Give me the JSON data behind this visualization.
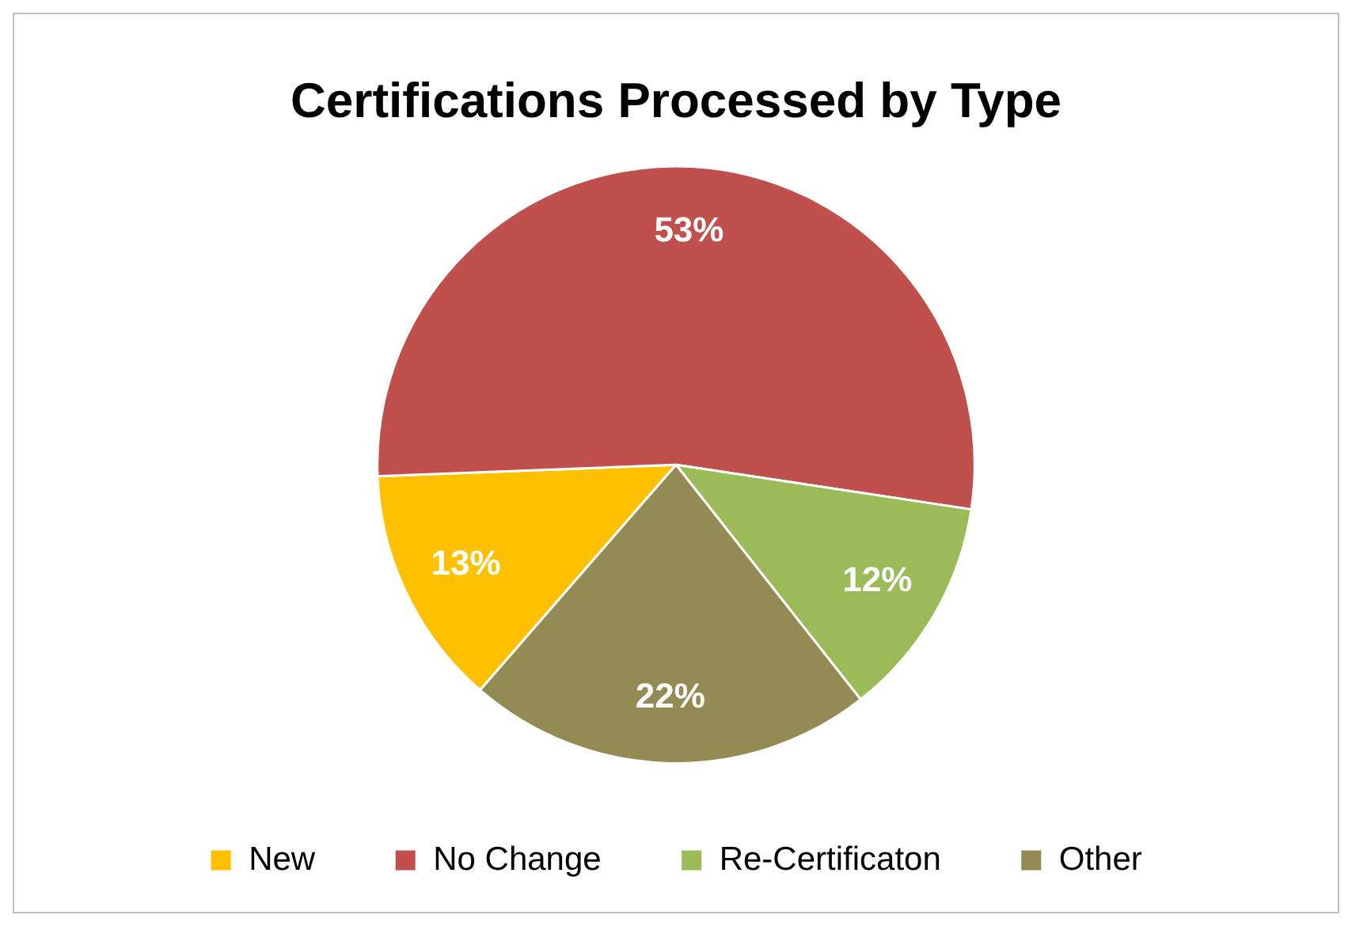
{
  "chart_data": {
    "type": "pie",
    "title": "Certifications Processed by Type",
    "categories": [
      "New",
      "No Change",
      "Re-Certificaton",
      "Other"
    ],
    "values": [
      13,
      53,
      12,
      22
    ],
    "colors": [
      "#ffc000",
      "#c0504d",
      "#9bbb59",
      "#948a54"
    ],
    "value_labels": [
      "13%",
      "53%",
      "12%",
      "22%"
    ],
    "legend": "bottom"
  }
}
